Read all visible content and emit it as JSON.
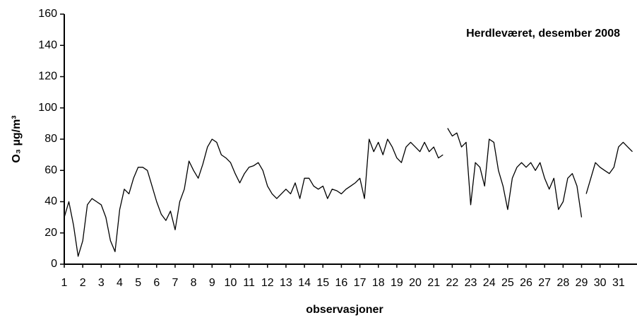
{
  "chart_data": {
    "type": "line",
    "annotation": "Herdleværet, desember 2008",
    "xlabel": "observasjoner",
    "ylabel": "O₃ µg/m³",
    "x": [
      1,
      1.25,
      1.5,
      1.75,
      2,
      2.25,
      2.5,
      2.75,
      3,
      3.25,
      3.5,
      3.75,
      4,
      4.25,
      4.5,
      4.75,
      5,
      5.25,
      5.5,
      5.75,
      6,
      6.25,
      6.5,
      6.75,
      7,
      7.25,
      7.5,
      7.75,
      8,
      8.25,
      8.5,
      8.75,
      9,
      9.25,
      9.5,
      9.75,
      10,
      10.25,
      10.5,
      10.75,
      11,
      11.25,
      11.5,
      11.75,
      12,
      12.25,
      12.5,
      12.75,
      13,
      13.25,
      13.5,
      13.75,
      14,
      14.25,
      14.5,
      14.75,
      15,
      15.25,
      15.5,
      15.75,
      16,
      16.25,
      16.5,
      16.75,
      17,
      17.25,
      17.5,
      17.75,
      18,
      18.25,
      18.5,
      18.75,
      19,
      19.25,
      19.5,
      19.75,
      20,
      20.25,
      20.5,
      20.75,
      21,
      21.25,
      21.5,
      21.6,
      21.75,
      22,
      22.25,
      22.5,
      22.75,
      23,
      23.25,
      23.5,
      23.75,
      24,
      24.25,
      24.5,
      24.75,
      25,
      25.25,
      25.5,
      25.75,
      26,
      26.25,
      26.5,
      26.75,
      27,
      27.25,
      27.5,
      27.75,
      28,
      28.25,
      28.5,
      28.75,
      29,
      29.1,
      29.25,
      29.5,
      29.75,
      30,
      30.25,
      30.5,
      30.75,
      31,
      31.25,
      31.5,
      31.75
    ],
    "series": [
      {
        "name": "O3",
        "color": "#000000",
        "values": [
          30,
          40,
          25,
          5,
          15,
          38,
          42,
          40,
          38,
          30,
          15,
          8,
          35,
          48,
          45,
          55,
          62,
          62,
          60,
          50,
          40,
          32,
          28,
          34,
          22,
          40,
          48,
          66,
          60,
          55,
          64,
          75,
          80,
          78,
          70,
          68,
          65,
          58,
          52,
          58,
          62,
          63,
          65,
          60,
          50,
          45,
          42,
          45,
          48,
          45,
          52,
          42,
          55,
          55,
          50,
          48,
          50,
          42,
          48,
          47,
          45,
          48,
          50,
          52,
          55,
          42,
          80,
          72,
          78,
          70,
          80,
          75,
          68,
          65,
          75,
          78,
          75,
          72,
          78,
          72,
          75,
          68,
          70,
          null,
          87,
          82,
          84,
          75,
          78,
          38,
          65,
          62,
          50,
          80,
          78,
          60,
          50,
          35,
          55,
          62,
          65,
          62,
          65,
          60,
          65,
          55,
          48,
          55,
          35,
          40,
          55,
          58,
          50,
          30,
          null,
          45,
          55,
          65,
          62,
          60,
          58,
          62,
          75,
          78,
          75,
          72
        ]
      }
    ],
    "xlim": [
      1,
      32
    ],
    "xticks": [
      1,
      2,
      3,
      4,
      5,
      6,
      7,
      8,
      9,
      10,
      11,
      12,
      13,
      14,
      15,
      16,
      17,
      18,
      19,
      20,
      21,
      22,
      23,
      24,
      25,
      26,
      27,
      28,
      29,
      30,
      31
    ],
    "ylim": [
      0,
      160
    ],
    "yticks": [
      0,
      20,
      40,
      60,
      80,
      100,
      120,
      140,
      160
    ],
    "grid": false
  }
}
